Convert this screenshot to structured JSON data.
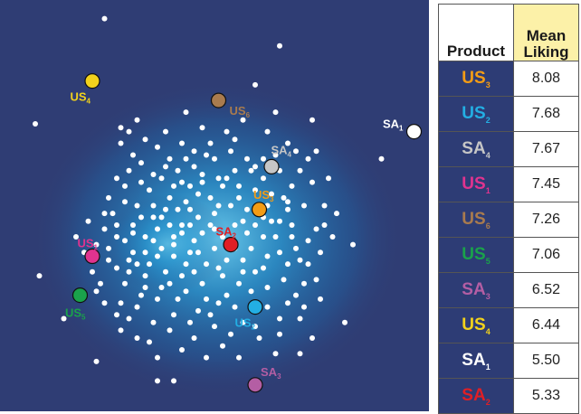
{
  "chart_data": {
    "type": "scatter",
    "title": "",
    "background": "#2f3d74",
    "glow_color": "#1d8ccc",
    "consumer_color": "#ffffff",
    "products": [
      {
        "base": "US",
        "sub": "4",
        "color": "#f2d21c",
        "x": 0.2,
        "y": 0.82
      },
      {
        "base": "US",
        "sub": "6",
        "color": "#a97b4e",
        "x": 0.51,
        "y": 0.77
      },
      {
        "base": "SA",
        "sub": "1",
        "color": "#ffffff",
        "x": 0.99,
        "y": 0.69
      },
      {
        "base": "SA",
        "sub": "4",
        "color": "#c6c6c6",
        "x": 0.64,
        "y": 0.6
      },
      {
        "base": "US",
        "sub": "3",
        "color": "#f39c15",
        "x": 0.61,
        "y": 0.49
      },
      {
        "base": "SA",
        "sub": "2",
        "color": "#e01f25",
        "x": 0.54,
        "y": 0.4
      },
      {
        "base": "US",
        "sub": "1",
        "color": "#e0338f",
        "x": 0.2,
        "y": 0.37
      },
      {
        "base": "US",
        "sub": "5",
        "color": "#1aa24b",
        "x": 0.17,
        "y": 0.27
      },
      {
        "base": "US",
        "sub": "2",
        "color": "#23aee3",
        "x": 0.6,
        "y": 0.24
      },
      {
        "base": "SA",
        "sub": "3",
        "color": "#b45ea4",
        "x": 0.6,
        "y": 0.04
      }
    ],
    "consumers": [
      [
        0.23,
        0.98
      ],
      [
        0.66,
        0.91
      ],
      [
        0.6,
        0.81
      ],
      [
        0.74,
        0.72
      ],
      [
        0.06,
        0.71
      ],
      [
        0.91,
        0.62
      ],
      [
        0.84,
        0.4
      ],
      [
        0.07,
        0.32
      ],
      [
        0.13,
        0.21
      ],
      [
        0.82,
        0.2
      ],
      [
        0.21,
        0.1
      ],
      [
        0.36,
        0.05
      ],
      [
        0.4,
        0.05
      ],
      [
        0.65,
        0.74
      ],
      [
        0.68,
        0.66
      ],
      [
        0.73,
        0.62
      ],
      [
        0.31,
        0.72
      ],
      [
        0.29,
        0.69
      ],
      [
        0.27,
        0.7
      ],
      [
        0.32,
        0.61
      ],
      [
        0.27,
        0.66
      ],
      [
        0.36,
        0.65
      ],
      [
        0.42,
        0.66
      ],
      [
        0.39,
        0.62
      ],
      [
        0.45,
        0.64
      ],
      [
        0.5,
        0.62
      ],
      [
        0.54,
        0.64
      ],
      [
        0.58,
        0.62
      ],
      [
        0.47,
        0.58
      ],
      [
        0.35,
        0.58
      ],
      [
        0.4,
        0.55
      ],
      [
        0.44,
        0.55
      ],
      [
        0.49,
        0.52
      ],
      [
        0.53,
        0.57
      ],
      [
        0.56,
        0.52
      ],
      [
        0.46,
        0.47
      ],
      [
        0.42,
        0.45
      ],
      [
        0.35,
        0.47
      ],
      [
        0.31,
        0.5
      ],
      [
        0.28,
        0.55
      ],
      [
        0.33,
        0.42
      ],
      [
        0.37,
        0.39
      ],
      [
        0.4,
        0.42
      ],
      [
        0.44,
        0.38
      ],
      [
        0.49,
        0.45
      ],
      [
        0.5,
        0.39
      ],
      [
        0.57,
        0.46
      ],
      [
        0.64,
        0.46
      ],
      [
        0.67,
        0.52
      ],
      [
        0.69,
        0.45
      ],
      [
        0.7,
        0.39
      ],
      [
        0.66,
        0.38
      ],
      [
        0.62,
        0.42
      ],
      [
        0.57,
        0.36
      ],
      [
        0.6,
        0.33
      ],
      [
        0.56,
        0.3
      ],
      [
        0.52,
        0.32
      ],
      [
        0.47,
        0.3
      ],
      [
        0.42,
        0.32
      ],
      [
        0.38,
        0.33
      ],
      [
        0.34,
        0.35
      ],
      [
        0.3,
        0.38
      ],
      [
        0.26,
        0.42
      ],
      [
        0.24,
        0.36
      ],
      [
        0.28,
        0.3
      ],
      [
        0.33,
        0.29
      ],
      [
        0.36,
        0.26
      ],
      [
        0.41,
        0.26
      ],
      [
        0.46,
        0.23
      ],
      [
        0.51,
        0.25
      ],
      [
        0.55,
        0.24
      ],
      [
        0.63,
        0.29
      ],
      [
        0.67,
        0.31
      ],
      [
        0.7,
        0.27
      ],
      [
        0.73,
        0.35
      ],
      [
        0.75,
        0.44
      ],
      [
        0.77,
        0.5
      ],
      [
        0.74,
        0.56
      ],
      [
        0.71,
        0.59
      ],
      [
        0.8,
        0.48
      ],
      [
        0.78,
        0.57
      ],
      [
        0.62,
        0.57
      ],
      [
        0.6,
        0.54
      ],
      [
        0.38,
        0.49
      ],
      [
        0.43,
        0.51
      ],
      [
        0.45,
        0.6
      ],
      [
        0.51,
        0.57
      ],
      [
        0.3,
        0.45
      ],
      [
        0.25,
        0.48
      ],
      [
        0.23,
        0.44
      ],
      [
        0.19,
        0.46
      ],
      [
        0.16,
        0.42
      ],
      [
        0.21,
        0.4
      ],
      [
        0.29,
        0.33
      ],
      [
        0.31,
        0.24
      ],
      [
        0.35,
        0.2
      ],
      [
        0.39,
        0.18
      ],
      [
        0.45,
        0.16
      ],
      [
        0.5,
        0.19
      ],
      [
        0.54,
        0.17
      ],
      [
        0.61,
        0.16
      ],
      [
        0.66,
        0.21
      ],
      [
        0.71,
        0.21
      ],
      [
        0.74,
        0.16
      ],
      [
        0.76,
        0.26
      ],
      [
        0.27,
        0.18
      ],
      [
        0.23,
        0.25
      ],
      [
        0.2,
        0.33
      ],
      [
        0.27,
        0.25
      ],
      [
        0.48,
        0.11
      ],
      [
        0.56,
        0.11
      ],
      [
        0.65,
        0.12
      ],
      [
        0.71,
        0.12
      ],
      [
        0.43,
        0.74
      ],
      [
        0.57,
        0.72
      ],
      [
        0.63,
        0.69
      ],
      [
        0.53,
        0.69
      ],
      [
        0.47,
        0.7
      ],
      [
        0.38,
        0.69
      ],
      [
        0.33,
        0.67
      ],
      [
        0.3,
        0.63
      ],
      [
        0.41,
        0.59
      ],
      [
        0.48,
        0.63
      ],
      [
        0.55,
        0.59
      ],
      [
        0.65,
        0.63
      ],
      [
        0.69,
        0.55
      ],
      [
        0.72,
        0.5
      ],
      [
        0.76,
        0.38
      ],
      [
        0.72,
        0.3
      ],
      [
        0.68,
        0.35
      ],
      [
        0.65,
        0.42
      ],
      [
        0.59,
        0.39
      ],
      [
        0.52,
        0.42
      ],
      [
        0.48,
        0.35
      ],
      [
        0.43,
        0.35
      ],
      [
        0.39,
        0.3
      ],
      [
        0.33,
        0.32
      ],
      [
        0.28,
        0.41
      ],
      [
        0.24,
        0.39
      ],
      [
        0.22,
        0.3
      ],
      [
        0.26,
        0.34
      ],
      [
        0.31,
        0.35
      ],
      [
        0.36,
        0.37
      ],
      [
        0.4,
        0.37
      ],
      [
        0.45,
        0.41
      ],
      [
        0.5,
        0.48
      ],
      [
        0.54,
        0.5
      ],
      [
        0.58,
        0.49
      ],
      [
        0.6,
        0.45
      ],
      [
        0.52,
        0.55
      ],
      [
        0.46,
        0.53
      ],
      [
        0.41,
        0.49
      ],
      [
        0.36,
        0.44
      ],
      [
        0.32,
        0.47
      ],
      [
        0.28,
        0.51
      ],
      [
        0.34,
        0.54
      ],
      [
        0.38,
        0.6
      ],
      [
        0.43,
        0.62
      ],
      [
        0.49,
        0.66
      ],
      [
        0.55,
        0.67
      ],
      [
        0.59,
        0.59
      ],
      [
        0.62,
        0.62
      ],
      [
        0.66,
        0.59
      ],
      [
        0.7,
        0.64
      ],
      [
        0.75,
        0.64
      ],
      [
        0.77,
        0.45
      ],
      [
        0.79,
        0.42
      ],
      [
        0.73,
        0.41
      ],
      [
        0.68,
        0.49
      ],
      [
        0.63,
        0.37
      ],
      [
        0.59,
        0.28
      ],
      [
        0.53,
        0.27
      ],
      [
        0.48,
        0.26
      ],
      [
        0.43,
        0.28
      ],
      [
        0.37,
        0.29
      ],
      [
        0.32,
        0.27
      ],
      [
        0.29,
        0.21
      ],
      [
        0.34,
        0.15
      ],
      [
        0.4,
        0.22
      ],
      [
        0.44,
        0.2
      ],
      [
        0.49,
        0.22
      ],
      [
        0.57,
        0.2
      ],
      [
        0.63,
        0.24
      ],
      [
        0.68,
        0.25
      ],
      [
        0.72,
        0.24
      ],
      [
        0.75,
        0.31
      ],
      [
        0.66,
        0.17
      ],
      [
        0.6,
        0.19
      ],
      [
        0.52,
        0.14
      ],
      [
        0.42,
        0.13
      ],
      [
        0.36,
        0.11
      ],
      [
        0.31,
        0.16
      ],
      [
        0.26,
        0.22
      ],
      [
        0.21,
        0.28
      ],
      [
        0.18,
        0.38
      ],
      [
        0.23,
        0.48
      ],
      [
        0.26,
        0.57
      ],
      [
        0.29,
        0.59
      ],
      [
        0.35,
        0.5
      ],
      [
        0.39,
        0.45
      ],
      [
        0.44,
        0.45
      ],
      [
        0.47,
        0.43
      ],
      [
        0.5,
        0.44
      ],
      [
        0.55,
        0.45
      ],
      [
        0.63,
        0.5
      ],
      [
        0.66,
        0.46
      ],
      [
        0.69,
        0.42
      ],
      [
        0.71,
        0.36
      ],
      [
        0.62,
        0.34
      ],
      [
        0.57,
        0.33
      ],
      [
        0.53,
        0.36
      ],
      [
        0.46,
        0.38
      ],
      [
        0.4,
        0.4
      ],
      [
        0.35,
        0.41
      ],
      [
        0.3,
        0.43
      ],
      [
        0.26,
        0.45
      ],
      [
        0.24,
        0.52
      ],
      [
        0.32,
        0.56
      ],
      [
        0.37,
        0.57
      ],
      [
        0.42,
        0.56
      ],
      [
        0.47,
        0.56
      ],
      [
        0.51,
        0.5
      ],
      [
        0.56,
        0.55
      ],
      [
        0.6,
        0.6
      ],
      [
        0.64,
        0.53
      ],
      [
        0.68,
        0.51
      ],
      [
        0.39,
        0.52
      ],
      [
        0.44,
        0.49
      ],
      [
        0.33,
        0.38
      ],
      [
        0.29,
        0.36
      ],
      [
        0.45,
        0.33
      ],
      [
        0.51,
        0.34
      ],
      [
        0.55,
        0.39
      ],
      [
        0.58,
        0.43
      ],
      [
        0.62,
        0.47
      ],
      [
        0.42,
        0.43
      ],
      [
        0.37,
        0.47
      ]
    ]
  },
  "table": {
    "header_product": "Product",
    "header_liking_line1": "Mean",
    "header_liking_line2": "Liking",
    "rows": [
      {
        "base": "US",
        "sub": "3",
        "color": "#f39c15",
        "value": "8.08"
      },
      {
        "base": "US",
        "sub": "2",
        "color": "#23aee3",
        "value": "7.68"
      },
      {
        "base": "SA",
        "sub": "4",
        "color": "#c6c6c6",
        "value": "7.67"
      },
      {
        "base": "US",
        "sub": "1",
        "color": "#e0338f",
        "value": "7.45"
      },
      {
        "base": "US",
        "sub": "6",
        "color": "#a97b4e",
        "value": "7.26"
      },
      {
        "base": "US",
        "sub": "5",
        "color": "#1aa24b",
        "value": "7.06"
      },
      {
        "base": "SA",
        "sub": "3",
        "color": "#b45ea4",
        "value": "6.52"
      },
      {
        "base": "US",
        "sub": "4",
        "color": "#f2d21c",
        "value": "6.44"
      },
      {
        "base": "SA",
        "sub": "1",
        "color": "#ffffff",
        "value": "5.50"
      },
      {
        "base": "SA",
        "sub": "2",
        "color": "#e01f25",
        "value": "5.33"
      }
    ]
  }
}
